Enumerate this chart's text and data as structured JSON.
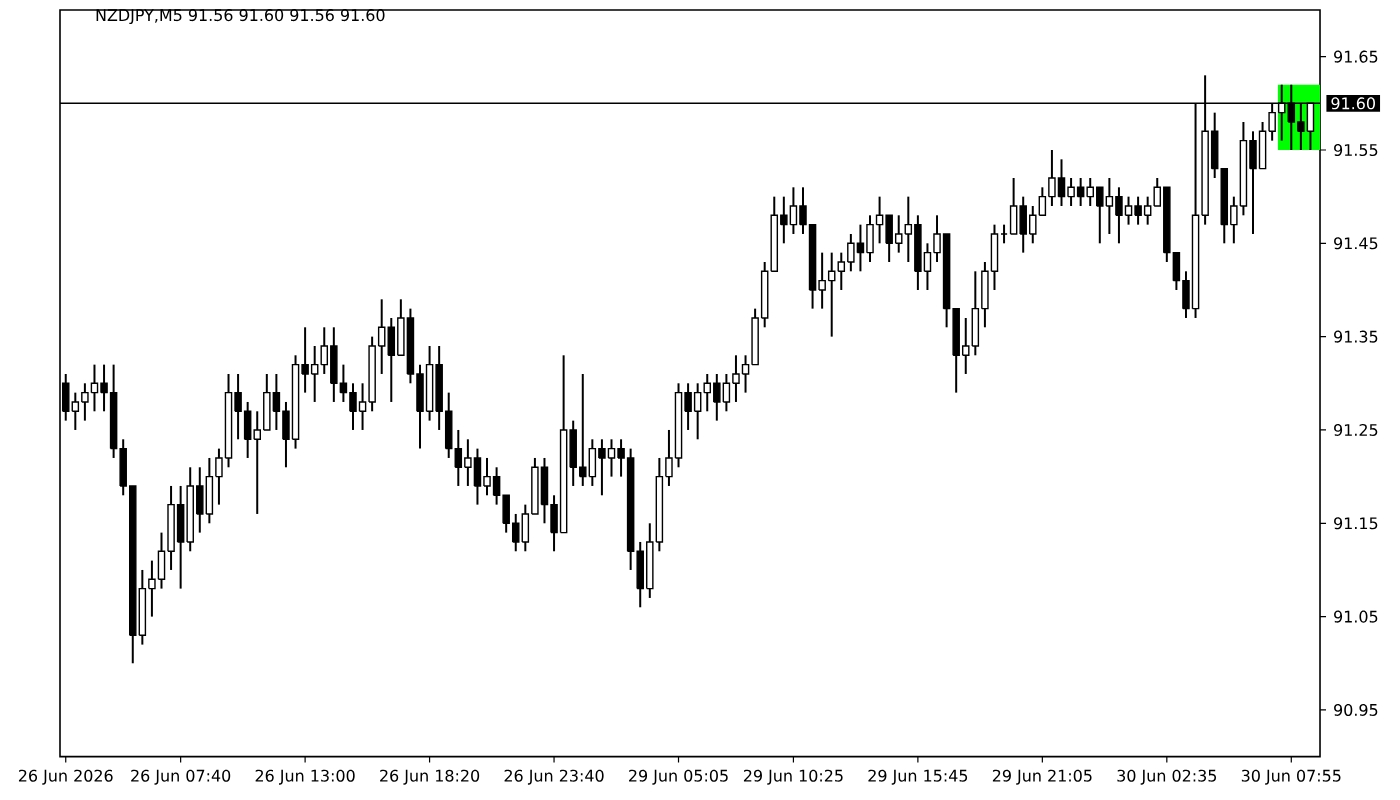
{
  "chart_data": {
    "type": "candlestick",
    "title": "NZDJPY,M5 91.56 91.60 91.56 91.60",
    "color": "#000000",
    "categories": [
      "26 Jun 2026",
      null,
      null,
      null,
      null,
      null,
      null,
      null,
      null,
      null,
      null,
      null,
      "26 Jun 07:40",
      null,
      null,
      null,
      null,
      null,
      null,
      null,
      null,
      null,
      null,
      null,
      null,
      "26 Jun 13:00",
      null,
      null,
      null,
      null,
      null,
      null,
      null,
      null,
      null,
      null,
      null,
      null,
      "26 Jun 18:20",
      null,
      null,
      null,
      null,
      null,
      null,
      null,
      null,
      null,
      null,
      null,
      null,
      "26 Jun 23:40",
      null,
      null,
      null,
      null,
      null,
      null,
      null,
      null,
      null,
      null,
      null,
      null,
      "29 Jun 05:05",
      null,
      null,
      null,
      null,
      null,
      null,
      null,
      null,
      null,
      null,
      null,
      "29 Jun 10:25",
      null,
      null,
      null,
      null,
      null,
      null,
      null,
      null,
      null,
      null,
      null,
      null,
      "29 Jun 15:45",
      null,
      null,
      null,
      null,
      null,
      null,
      null,
      null,
      null,
      null,
      null,
      null,
      "29 Jun 21:05",
      null,
      null,
      null,
      null,
      null,
      null,
      null,
      null,
      null,
      null,
      null,
      null,
      "30 Jun 02:35",
      null,
      null,
      null,
      null,
      null,
      null,
      null,
      null,
      null,
      null,
      null,
      null,
      "30 Jun 07:55",
      null,
      null
    ],
    "ohlc": [
      [
        91.3,
        91.31,
        91.26,
        91.27
      ],
      [
        91.27,
        91.29,
        91.25,
        91.28
      ],
      [
        91.28,
        91.3,
        91.26,
        91.29
      ],
      [
        91.29,
        91.32,
        91.27,
        91.3
      ],
      [
        91.3,
        91.32,
        91.27,
        91.29
      ],
      [
        91.29,
        91.32,
        91.22,
        91.23
      ],
      [
        91.23,
        91.24,
        91.18,
        91.19
      ],
      [
        91.19,
        91.19,
        91.0,
        91.03
      ],
      [
        91.03,
        91.1,
        91.02,
        91.08
      ],
      [
        91.08,
        91.11,
        91.05,
        91.09
      ],
      [
        91.09,
        91.14,
        91.08,
        91.12
      ],
      [
        91.12,
        91.19,
        91.1,
        91.17
      ],
      [
        91.17,
        91.19,
        91.08,
        91.13
      ],
      [
        91.13,
        91.21,
        91.12,
        91.19
      ],
      [
        91.19,
        91.21,
        91.14,
        91.16
      ],
      [
        91.16,
        91.22,
        91.15,
        91.2
      ],
      [
        91.2,
        91.23,
        91.17,
        91.22
      ],
      [
        91.22,
        91.31,
        91.21,
        91.29
      ],
      [
        91.29,
        91.31,
        91.24,
        91.27
      ],
      [
        91.27,
        91.28,
        91.22,
        91.24
      ],
      [
        91.24,
        91.27,
        91.16,
        91.25
      ],
      [
        91.25,
        91.31,
        91.25,
        91.29
      ],
      [
        91.29,
        91.31,
        91.25,
        91.27
      ],
      [
        91.27,
        91.28,
        91.21,
        91.24
      ],
      [
        91.24,
        91.33,
        91.23,
        91.32
      ],
      [
        91.32,
        91.36,
        91.29,
        91.31
      ],
      [
        91.31,
        91.34,
        91.28,
        91.32
      ],
      [
        91.32,
        91.36,
        91.31,
        91.34
      ],
      [
        91.34,
        91.36,
        91.28,
        91.3
      ],
      [
        91.3,
        91.32,
        91.28,
        91.29
      ],
      [
        91.29,
        91.3,
        91.25,
        91.27
      ],
      [
        91.27,
        91.3,
        91.25,
        91.28
      ],
      [
        91.28,
        91.35,
        91.27,
        91.34
      ],
      [
        91.34,
        91.39,
        91.31,
        91.36
      ],
      [
        91.36,
        91.37,
        91.28,
        91.33
      ],
      [
        91.33,
        91.39,
        91.33,
        91.37
      ],
      [
        91.37,
        91.38,
        91.3,
        91.31
      ],
      [
        91.31,
        91.32,
        91.23,
        91.27
      ],
      [
        91.27,
        91.34,
        91.26,
        91.32
      ],
      [
        91.32,
        91.34,
        91.25,
        91.27
      ],
      [
        91.27,
        91.29,
        91.22,
        91.23
      ],
      [
        91.23,
        91.25,
        91.19,
        91.21
      ],
      [
        91.21,
        91.24,
        91.19,
        91.22
      ],
      [
        91.22,
        91.23,
        91.17,
        91.19
      ],
      [
        91.19,
        91.22,
        91.18,
        91.2
      ],
      [
        91.2,
        91.21,
        91.17,
        91.18
      ],
      [
        91.18,
        91.18,
        91.14,
        91.15
      ],
      [
        91.15,
        91.16,
        91.12,
        91.13
      ],
      [
        91.13,
        91.17,
        91.12,
        91.16
      ],
      [
        91.16,
        91.22,
        91.16,
        91.21
      ],
      [
        91.21,
        91.22,
        91.15,
        91.17
      ],
      [
        91.17,
        91.18,
        91.12,
        91.14
      ],
      [
        91.14,
        91.33,
        91.14,
        91.25
      ],
      [
        91.25,
        91.26,
        91.19,
        91.21
      ],
      [
        91.21,
        91.31,
        91.19,
        91.2
      ],
      [
        91.2,
        91.24,
        91.19,
        91.23
      ],
      [
        91.23,
        91.24,
        91.18,
        91.22
      ],
      [
        91.22,
        91.24,
        91.2,
        91.23
      ],
      [
        91.23,
        91.24,
        91.2,
        91.22
      ],
      [
        91.22,
        91.23,
        91.1,
        91.12
      ],
      [
        91.12,
        91.13,
        91.06,
        91.08
      ],
      [
        91.08,
        91.15,
        91.07,
        91.13
      ],
      [
        91.13,
        91.22,
        91.12,
        91.2
      ],
      [
        91.2,
        91.25,
        91.19,
        91.22
      ],
      [
        91.22,
        91.3,
        91.21,
        91.29
      ],
      [
        91.29,
        91.3,
        91.25,
        91.27
      ],
      [
        91.27,
        91.3,
        91.24,
        91.29
      ],
      [
        91.29,
        91.31,
        91.27,
        91.3
      ],
      [
        91.3,
        91.31,
        91.26,
        91.28
      ],
      [
        91.28,
        91.31,
        91.27,
        91.3
      ],
      [
        91.3,
        91.33,
        91.28,
        91.31
      ],
      [
        91.31,
        91.33,
        91.29,
        91.32
      ],
      [
        91.32,
        91.38,
        91.32,
        91.37
      ],
      [
        91.37,
        91.43,
        91.36,
        91.42
      ],
      [
        91.42,
        91.5,
        91.42,
        91.48
      ],
      [
        91.48,
        91.5,
        91.45,
        91.47
      ],
      [
        91.47,
        91.51,
        91.46,
        91.49
      ],
      [
        91.49,
        91.51,
        91.46,
        91.47
      ],
      [
        91.47,
        91.47,
        91.38,
        91.4
      ],
      [
        91.4,
        91.44,
        91.38,
        91.41
      ],
      [
        91.41,
        91.44,
        91.35,
        91.42
      ],
      [
        91.42,
        91.44,
        91.4,
        91.43
      ],
      [
        91.43,
        91.46,
        91.42,
        91.45
      ],
      [
        91.45,
        91.47,
        91.42,
        91.44
      ],
      [
        91.44,
        91.48,
        91.43,
        91.47
      ],
      [
        91.47,
        91.5,
        91.45,
        91.48
      ],
      [
        91.48,
        91.48,
        91.43,
        91.45
      ],
      [
        91.45,
        91.48,
        91.44,
        91.46
      ],
      [
        91.46,
        91.5,
        91.43,
        91.47
      ],
      [
        91.47,
        91.48,
        91.4,
        91.42
      ],
      [
        91.42,
        91.45,
        91.4,
        91.44
      ],
      [
        91.44,
        91.48,
        91.43,
        91.46
      ],
      [
        91.46,
        91.46,
        91.36,
        91.38
      ],
      [
        91.38,
        91.38,
        91.29,
        91.33
      ],
      [
        91.33,
        91.37,
        91.31,
        91.34
      ],
      [
        91.34,
        91.42,
        91.33,
        91.38
      ],
      [
        91.38,
        91.43,
        91.36,
        91.42
      ],
      [
        91.42,
        91.47,
        91.4,
        91.46
      ],
      [
        91.46,
        91.47,
        91.45,
        91.46
      ],
      [
        91.46,
        91.52,
        91.46,
        91.49
      ],
      [
        91.49,
        91.5,
        91.44,
        91.46
      ],
      [
        91.46,
        91.49,
        91.45,
        91.48
      ],
      [
        91.48,
        91.51,
        91.48,
        91.5
      ],
      [
        91.5,
        91.55,
        91.49,
        91.52
      ],
      [
        91.52,
        91.54,
        91.49,
        91.5
      ],
      [
        91.5,
        91.52,
        91.49,
        91.51
      ],
      [
        91.51,
        91.52,
        91.49,
        91.5
      ],
      [
        91.5,
        91.52,
        91.49,
        91.51
      ],
      [
        91.51,
        91.51,
        91.45,
        91.49
      ],
      [
        91.49,
        91.52,
        91.46,
        91.5
      ],
      [
        91.5,
        91.51,
        91.45,
        91.48
      ],
      [
        91.48,
        91.5,
        91.47,
        91.49
      ],
      [
        91.49,
        91.5,
        91.47,
        91.48
      ],
      [
        91.48,
        91.5,
        91.47,
        91.49
      ],
      [
        91.49,
        91.52,
        91.49,
        91.51
      ],
      [
        91.51,
        91.51,
        91.43,
        91.44
      ],
      [
        91.44,
        91.44,
        91.4,
        91.41
      ],
      [
        91.41,
        91.42,
        91.37,
        91.38
      ],
      [
        91.38,
        91.6,
        91.37,
        91.48
      ],
      [
        91.48,
        91.63,
        91.47,
        91.57
      ],
      [
        91.57,
        91.59,
        91.52,
        91.53
      ],
      [
        91.53,
        91.53,
        91.45,
        91.47
      ],
      [
        91.47,
        91.5,
        91.45,
        91.49
      ],
      [
        91.49,
        91.58,
        91.48,
        91.56
      ],
      [
        91.56,
        91.57,
        91.46,
        91.53
      ],
      [
        91.53,
        91.58,
        91.53,
        91.57
      ],
      [
        91.57,
        91.6,
        91.56,
        91.59
      ],
      [
        91.59,
        91.62,
        91.56,
        91.6
      ],
      [
        91.6,
        91.62,
        91.55,
        91.58
      ],
      [
        91.58,
        91.6,
        91.55,
        91.57
      ],
      [
        91.57,
        91.6,
        91.55,
        91.6
      ]
    ],
    "ylim": [
      90.9,
      91.7
    ],
    "yticks": [
      90.95,
      91.05,
      91.15,
      91.25,
      91.35,
      91.45,
      91.55,
      91.65
    ],
    "ref_lines": [
      {
        "axis": "y",
        "value": 91.6,
        "label": "91.60",
        "color": "#000000"
      }
    ]
  }
}
